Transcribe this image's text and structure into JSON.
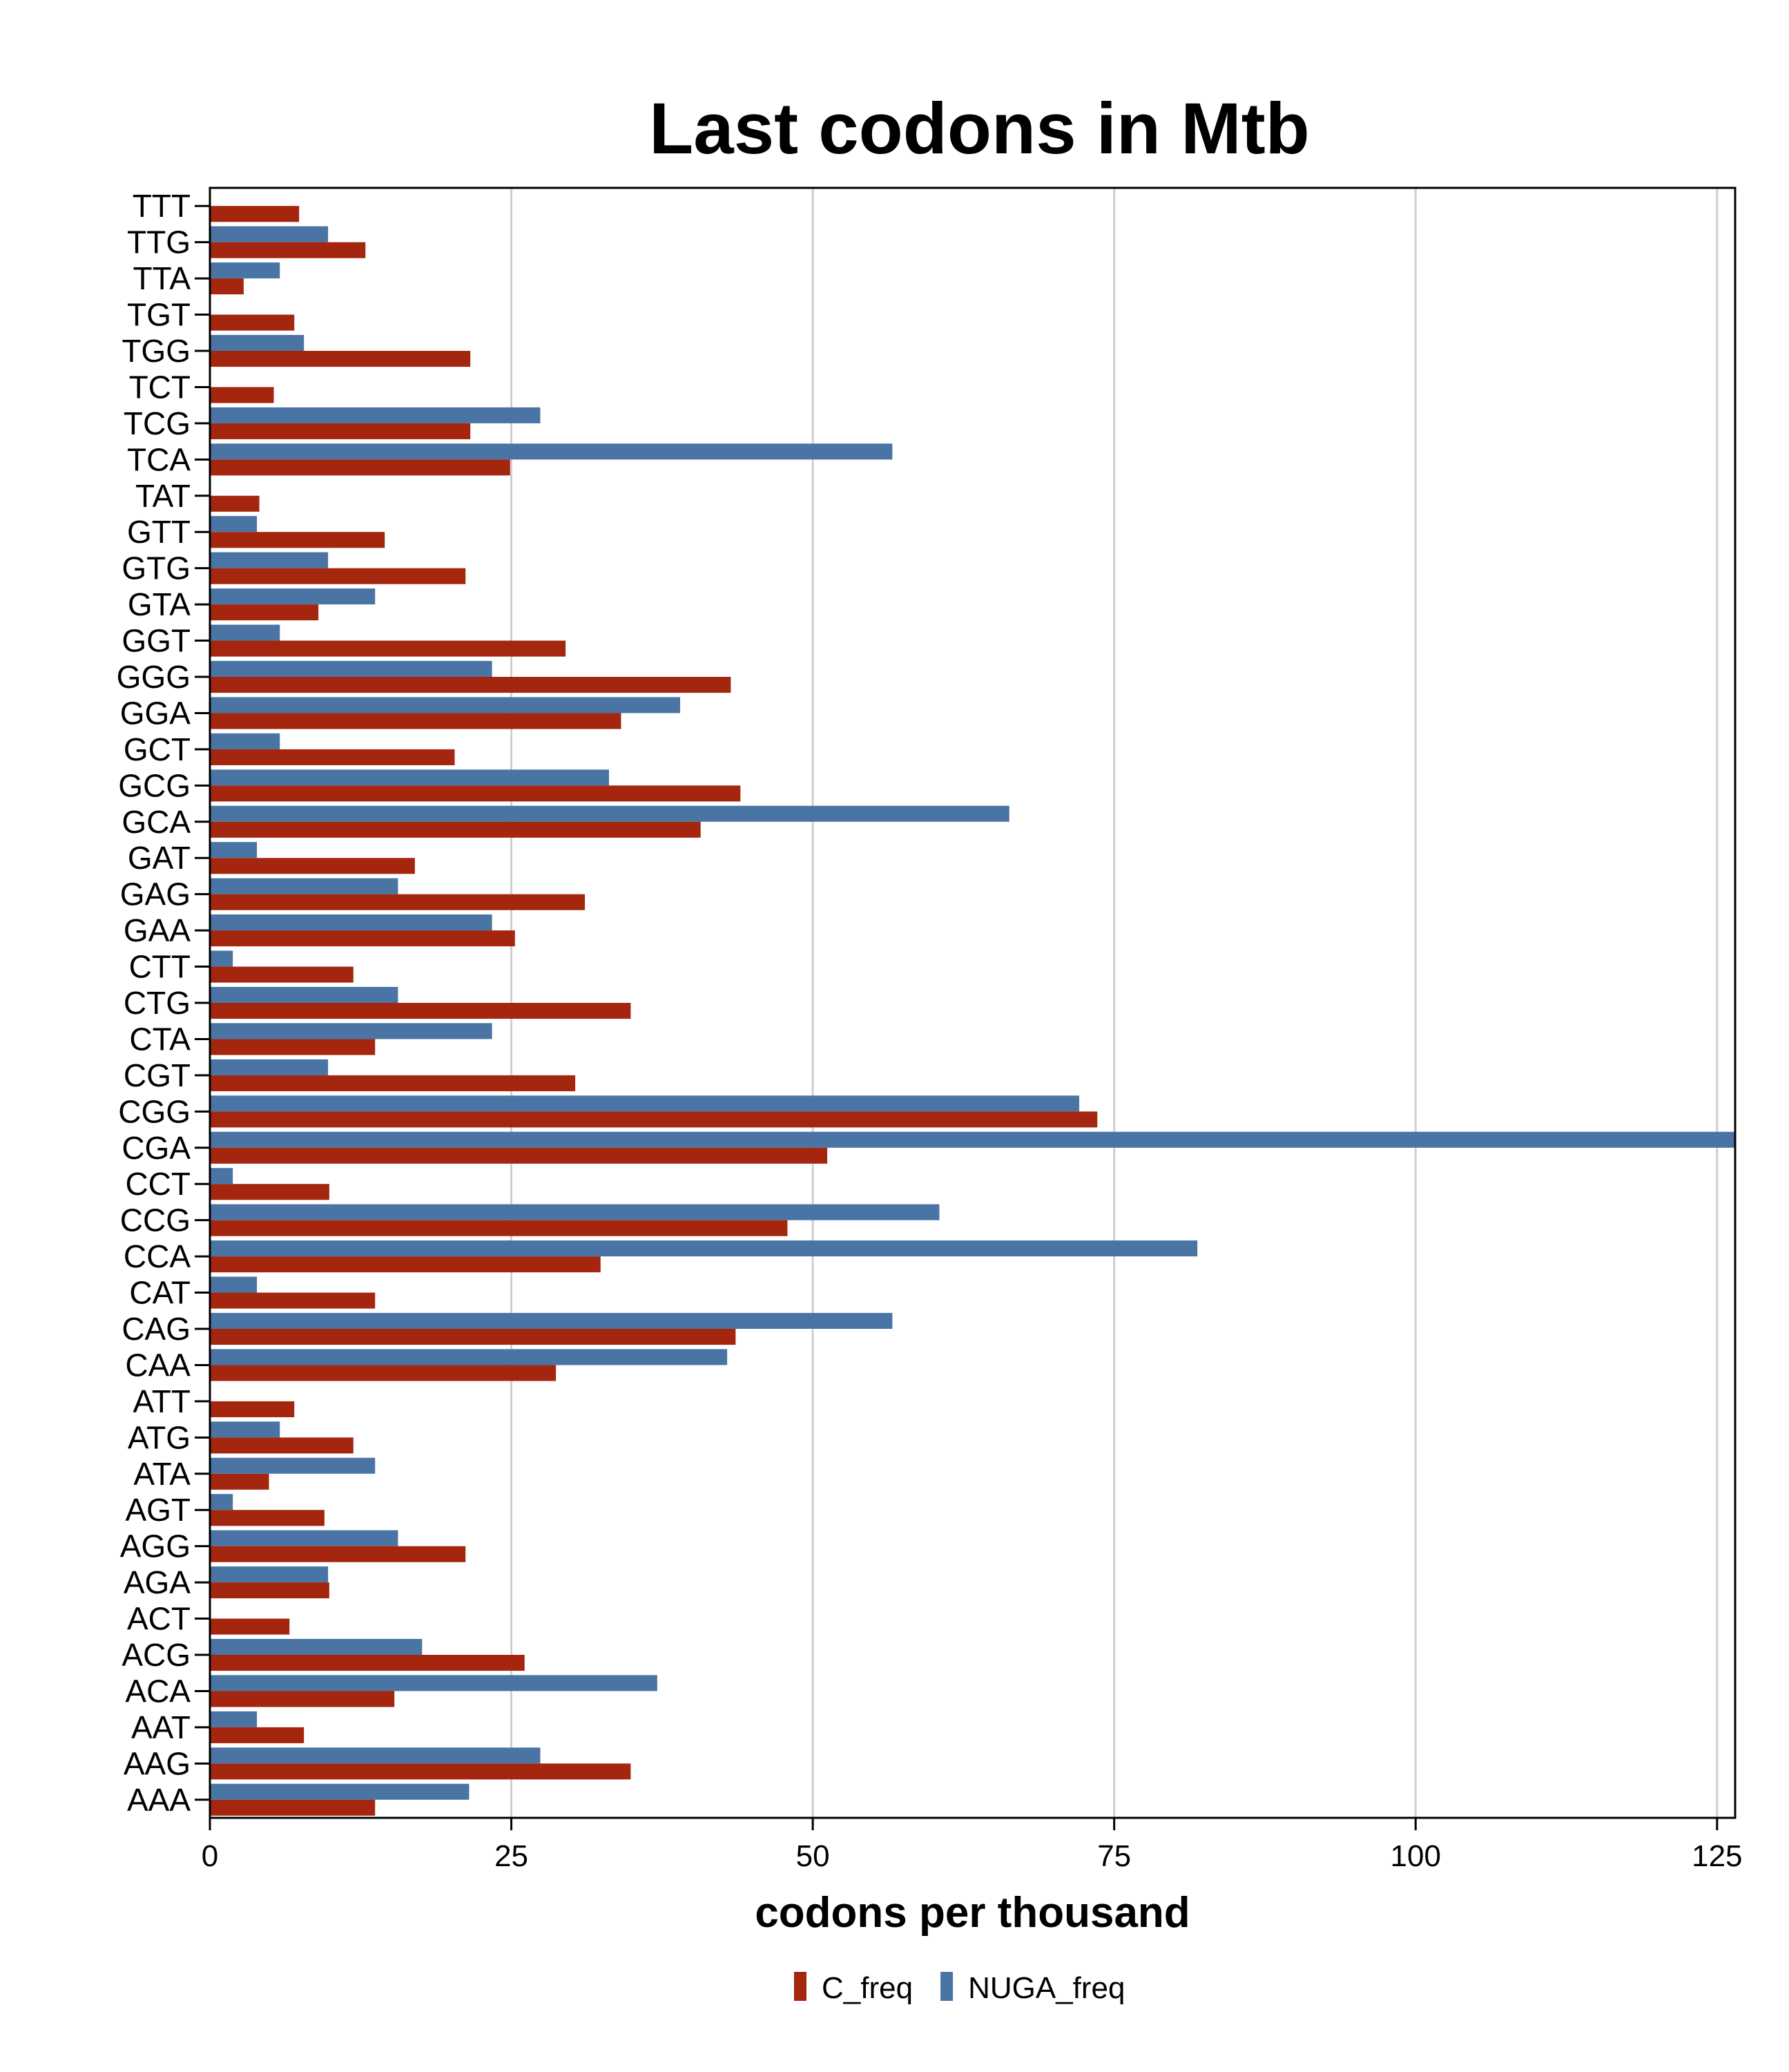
{
  "chart_data": {
    "type": "bar",
    "orientation": "horizontal",
    "title": "Last codons in Mtb",
    "xlabel": "codons per thousand",
    "ylabel": "",
    "xlim": [
      0,
      126.5
    ],
    "xticks": [
      0,
      25,
      50,
      75,
      100,
      125
    ],
    "grid": true,
    "legend_position": "bottom",
    "categories": [
      "TTT",
      "TTG",
      "TTA",
      "TGT",
      "TGG",
      "TCT",
      "TCG",
      "TCA",
      "TAT",
      "GTT",
      "GTG",
      "GTA",
      "GGT",
      "GGG",
      "GGA",
      "GCT",
      "GCG",
      "GCA",
      "GAT",
      "GAG",
      "GAA",
      "CTT",
      "CTG",
      "CTA",
      "CGT",
      "CGG",
      "CGA",
      "CCT",
      "CCG",
      "CCA",
      "CAT",
      "CAG",
      "CAA",
      "ATT",
      "ATG",
      "ATA",
      "AGT",
      "AGG",
      "AGA",
      "ACT",
      "ACG",
      "ACA",
      "AAT",
      "AAG",
      "AAA"
    ],
    "series": [
      {
        "name": "C_freq",
        "color": "#A4260E",
        "values": [
          7.4,
          12.9,
          2.8,
          7.0,
          21.6,
          5.3,
          21.6,
          24.9,
          4.1,
          14.5,
          21.2,
          9.0,
          29.5,
          43.2,
          34.1,
          20.3,
          44.0,
          40.7,
          17.0,
          31.1,
          25.3,
          11.9,
          34.9,
          13.7,
          30.3,
          73.6,
          51.2,
          9.9,
          47.9,
          32.4,
          13.7,
          43.6,
          28.7,
          7.0,
          11.9,
          4.9,
          9.5,
          21.2,
          9.9,
          6.6,
          26.1,
          15.3,
          7.8,
          34.9,
          13.7
        ]
      },
      {
        "name": "NUGA_freq",
        "color": "#4A74A3",
        "values": [
          0,
          9.8,
          5.8,
          0,
          7.8,
          0,
          27.4,
          56.6,
          0,
          3.9,
          9.8,
          13.7,
          5.8,
          23.4,
          39.0,
          5.8,
          33.1,
          66.3,
          3.9,
          15.6,
          23.4,
          1.9,
          15.6,
          23.4,
          9.8,
          72.1,
          126.5,
          1.9,
          60.5,
          81.9,
          3.9,
          56.6,
          42.9,
          0,
          5.8,
          13.7,
          1.9,
          15.6,
          9.8,
          0,
          17.6,
          37.1,
          3.9,
          27.4,
          21.5
        ]
      }
    ]
  }
}
